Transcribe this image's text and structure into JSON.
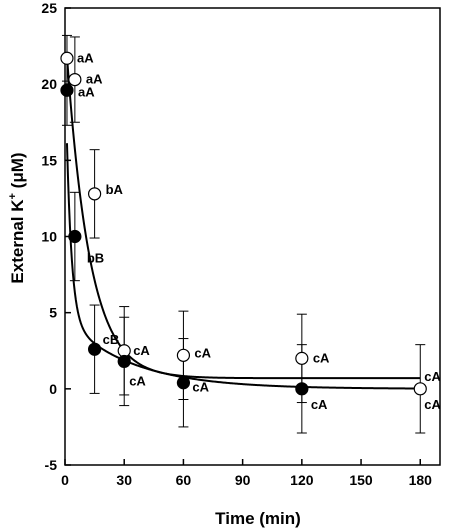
{
  "chart_data": {
    "type": "scatter",
    "title": "",
    "xlabel": "Time (min)",
    "ylabel_main": "External K",
    "ylabel_sup": "+",
    "ylabel_unit": " (μM)",
    "xlim": [
      0,
      190
    ],
    "ylim": [
      -5,
      25
    ],
    "xticks": [
      "0",
      "30",
      "60",
      "90",
      "120",
      "150",
      "180"
    ],
    "xtick_values": [
      0,
      30,
      60,
      90,
      120,
      150,
      180
    ],
    "yticks": [
      "-5",
      "0",
      "5",
      "10",
      "15",
      "20",
      "25"
    ],
    "ytick_values": [
      -5,
      0,
      5,
      10,
      15,
      20,
      25
    ],
    "grid": false,
    "series": [
      {
        "marker": "open-circle",
        "points": [
          {
            "x": 1,
            "y": 21.7,
            "err": 1.5,
            "label": "aA"
          },
          {
            "x": 5,
            "y": 20.3,
            "err": 2.8,
            "label": "aA"
          },
          {
            "x": 15,
            "y": 12.8,
            "err": 2.9,
            "label": "bA"
          },
          {
            "x": 30,
            "y": 2.5,
            "err": 2.9,
            "label": "cA"
          },
          {
            "x": 60,
            "y": 2.2,
            "err": 2.9,
            "label": "cA"
          },
          {
            "x": 120,
            "y": 2.0,
            "err": 2.9,
            "label": "cA"
          },
          {
            "x": 180,
            "y": 0.0,
            "err": 2.9,
            "label": "cA"
          }
        ],
        "fit": {
          "a": 0.7,
          "b": 23.0,
          "k": 0.085
        }
      },
      {
        "marker": "filled-circle",
        "points": [
          {
            "x": 1,
            "y": 19.6,
            "err": 2.3,
            "label": "aA"
          },
          {
            "x": 5,
            "y": 10.0,
            "err": 2.9,
            "label": "bB"
          },
          {
            "x": 15,
            "y": 2.6,
            "err": 2.9,
            "label": "cB"
          },
          {
            "x": 30,
            "y": 1.8,
            "err": 2.9,
            "label": "cA"
          },
          {
            "x": 60,
            "y": 0.4,
            "err": 2.9,
            "label": "cA"
          },
          {
            "x": 120,
            "y": 0.0,
            "err": 2.9,
            "label": "cA"
          }
        ],
        "fit": {
          "a": 0.0,
          "b": 4.6,
          "k": 0.03,
          "c": 17.4,
          "m": 0.4
        }
      }
    ]
  }
}
